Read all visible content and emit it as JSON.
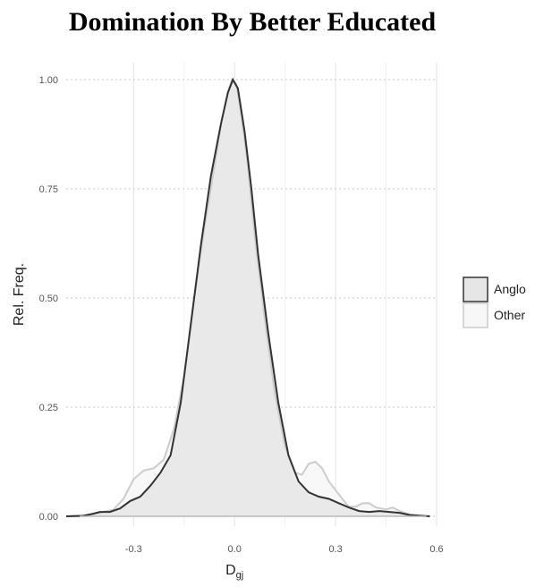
{
  "chart_data": {
    "type": "area",
    "title": "Domination By Better Educated",
    "xlabel_main": "D",
    "xlabel_sub": "gj",
    "ylabel": "Rel. Freq.",
    "xlim": [
      -0.5,
      0.6
    ],
    "ylim": [
      0,
      1
    ],
    "xticks": [
      -0.3,
      0.0,
      0.3,
      0.6
    ],
    "xtick_labels": [
      "-0.3",
      "0.0",
      "0.3",
      "0.6"
    ],
    "yticks": [
      0,
      0.25,
      0.5,
      0.75,
      1.0
    ],
    "ytick_labels": [
      "0.00",
      "0.25",
      "0.50",
      "0.75",
      "1.00"
    ],
    "grid": true,
    "legend_position": "right",
    "series": [
      {
        "name": "Anglo",
        "fill": "#e6e6e6",
        "stroke": "#333333",
        "points": [
          [
            -0.5,
            0.0
          ],
          [
            -0.45,
            0.001
          ],
          [
            -0.42,
            0.006
          ],
          [
            -0.4,
            0.01
          ],
          [
            -0.37,
            0.01
          ],
          [
            -0.34,
            0.018
          ],
          [
            -0.31,
            0.035
          ],
          [
            -0.28,
            0.045
          ],
          [
            -0.25,
            0.07
          ],
          [
            -0.22,
            0.1
          ],
          [
            -0.19,
            0.14
          ],
          [
            -0.16,
            0.26
          ],
          [
            -0.13,
            0.44
          ],
          [
            -0.1,
            0.62
          ],
          [
            -0.07,
            0.78
          ],
          [
            -0.04,
            0.9
          ],
          [
            -0.02,
            0.97
          ],
          [
            -0.005,
            1.0
          ],
          [
            0.01,
            0.98
          ],
          [
            0.03,
            0.88
          ],
          [
            0.05,
            0.75
          ],
          [
            0.07,
            0.6
          ],
          [
            0.1,
            0.42
          ],
          [
            0.13,
            0.26
          ],
          [
            0.16,
            0.14
          ],
          [
            0.19,
            0.08
          ],
          [
            0.22,
            0.055
          ],
          [
            0.25,
            0.045
          ],
          [
            0.28,
            0.04
          ],
          [
            0.31,
            0.03
          ],
          [
            0.34,
            0.02
          ],
          [
            0.37,
            0.012
          ],
          [
            0.4,
            0.01
          ],
          [
            0.43,
            0.012
          ],
          [
            0.46,
            0.01
          ],
          [
            0.49,
            0.008
          ],
          [
            0.52,
            0.003
          ],
          [
            0.56,
            0.001
          ],
          [
            0.58,
            0.0
          ]
        ]
      },
      {
        "name": "Other",
        "fill": "#f7f7f7",
        "stroke": "#cccccc",
        "points": [
          [
            -0.5,
            0.0
          ],
          [
            -0.45,
            0.002
          ],
          [
            -0.42,
            0.005
          ],
          [
            -0.39,
            0.01
          ],
          [
            -0.36,
            0.015
          ],
          [
            -0.33,
            0.04
          ],
          [
            -0.3,
            0.085
          ],
          [
            -0.27,
            0.105
          ],
          [
            -0.24,
            0.11
          ],
          [
            -0.21,
            0.13
          ],
          [
            -0.18,
            0.2
          ],
          [
            -0.15,
            0.32
          ],
          [
            -0.12,
            0.5
          ],
          [
            -0.09,
            0.66
          ],
          [
            -0.06,
            0.8
          ],
          [
            -0.04,
            0.9
          ],
          [
            -0.02,
            0.97
          ],
          [
            -0.008,
            1.0
          ],
          [
            0.005,
            0.99
          ],
          [
            0.02,
            0.92
          ],
          [
            0.04,
            0.8
          ],
          [
            0.06,
            0.64
          ],
          [
            0.09,
            0.45
          ],
          [
            0.12,
            0.28
          ],
          [
            0.15,
            0.16
          ],
          [
            0.18,
            0.1
          ],
          [
            0.2,
            0.095
          ],
          [
            0.22,
            0.12
          ],
          [
            0.24,
            0.125
          ],
          [
            0.26,
            0.11
          ],
          [
            0.28,
            0.08
          ],
          [
            0.3,
            0.06
          ],
          [
            0.32,
            0.04
          ],
          [
            0.34,
            0.022
          ],
          [
            0.36,
            0.022
          ],
          [
            0.38,
            0.03
          ],
          [
            0.4,
            0.03
          ],
          [
            0.42,
            0.02
          ],
          [
            0.45,
            0.016
          ],
          [
            0.47,
            0.02
          ],
          [
            0.49,
            0.012
          ],
          [
            0.52,
            0.004
          ],
          [
            0.55,
            0.001
          ],
          [
            0.57,
            0.0
          ]
        ]
      }
    ]
  }
}
